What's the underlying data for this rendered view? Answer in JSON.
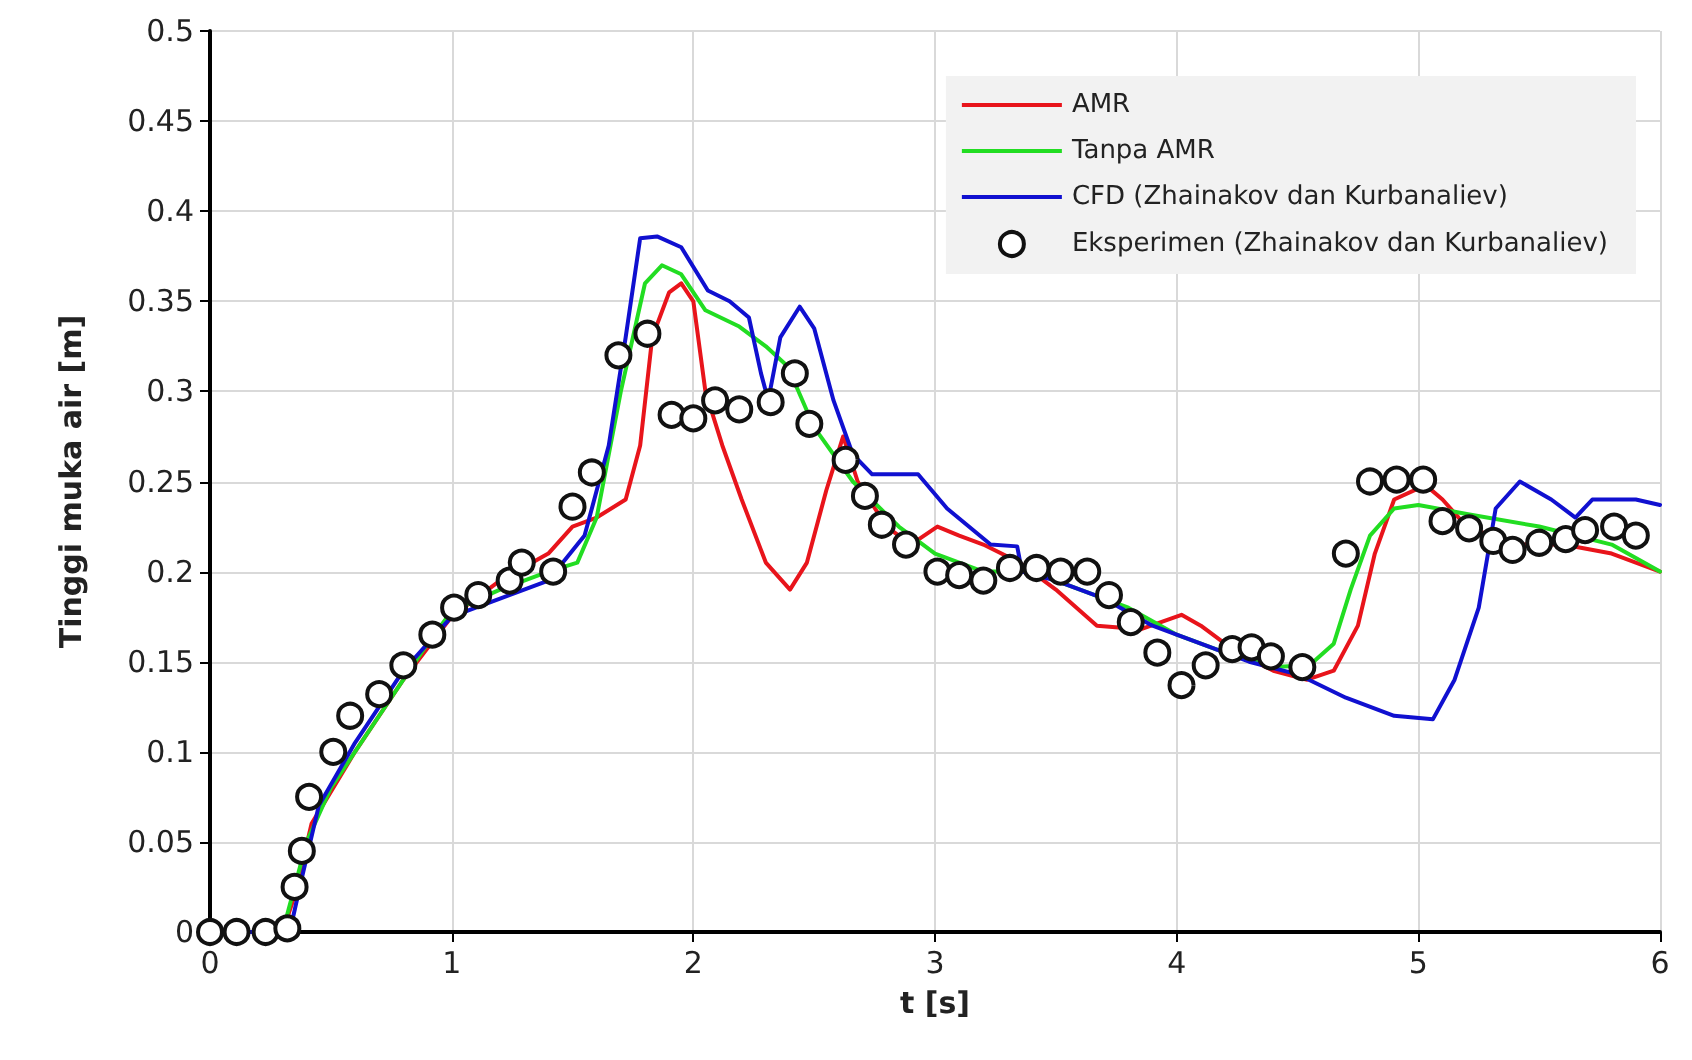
{
  "chart_data": {
    "type": "line",
    "xlabel": "t [s]",
    "ylabel": "Tinggi muka air [m]",
    "xlim": [
      0,
      6
    ],
    "xticks": [
      0,
      1,
      2,
      3,
      4,
      5,
      6
    ],
    "ylim": [
      0,
      0.5
    ],
    "yticks": [
      0,
      0.05,
      0.1,
      0.15,
      0.2,
      0.25,
      0.3,
      0.35,
      0.4,
      0.45,
      0.5
    ],
    "grid": true,
    "legend": "top right",
    "line_style": "solid",
    "series": [
      {
        "name": "AMR",
        "color": "#e8141b",
        "marker": "none",
        "x": [
          0,
          0.3,
          0.35,
          0.42,
          0.6,
          0.8,
          1.0,
          1.2,
          1.4,
          1.5,
          1.6,
          1.72,
          1.78,
          1.83,
          1.9,
          1.95,
          2.0,
          2.05,
          2.12,
          2.2,
          2.3,
          2.4,
          2.47,
          2.55,
          2.62,
          2.68,
          2.8,
          2.9,
          3.01,
          3.1,
          3.2,
          3.35,
          3.5,
          3.67,
          3.85,
          4.02,
          4.1,
          4.25,
          4.4,
          4.54,
          4.65,
          4.75,
          4.82,
          4.9,
          5.03,
          5.1,
          5.2,
          5.4,
          5.6,
          5.8,
          6.0
        ],
        "values": [
          0,
          0,
          0.02,
          0.06,
          0.1,
          0.14,
          0.175,
          0.195,
          0.21,
          0.225,
          0.23,
          0.24,
          0.27,
          0.33,
          0.355,
          0.36,
          0.35,
          0.3,
          0.27,
          0.24,
          0.205,
          0.19,
          0.205,
          0.245,
          0.275,
          0.25,
          0.225,
          0.215,
          0.225,
          0.22,
          0.215,
          0.205,
          0.19,
          0.17,
          0.168,
          0.176,
          0.17,
          0.155,
          0.145,
          0.14,
          0.145,
          0.17,
          0.21,
          0.24,
          0.248,
          0.24,
          0.225,
          0.215,
          0.215,
          0.21,
          0.2
        ]
      },
      {
        "name": "Tanpa AMR",
        "color": "#22dd22",
        "marker": "none",
        "x": [
          0,
          0.3,
          0.4,
          0.5,
          0.7,
          0.9,
          1.0,
          1.2,
          1.4,
          1.52,
          1.6,
          1.7,
          1.8,
          1.87,
          1.95,
          2.05,
          2.19,
          2.3,
          2.39,
          2.5,
          2.66,
          2.85,
          3.0,
          3.2,
          3.4,
          3.6,
          3.8,
          4.0,
          4.2,
          4.4,
          4.55,
          4.65,
          4.72,
          4.8,
          4.9,
          5.0,
          5.2,
          5.5,
          5.8,
          6.0
        ],
        "values": [
          0,
          0,
          0.05,
          0.08,
          0.12,
          0.16,
          0.178,
          0.19,
          0.2,
          0.205,
          0.23,
          0.3,
          0.36,
          0.37,
          0.365,
          0.345,
          0.336,
          0.325,
          0.314,
          0.28,
          0.25,
          0.225,
          0.21,
          0.2,
          0.2,
          0.19,
          0.18,
          0.165,
          0.155,
          0.147,
          0.148,
          0.16,
          0.19,
          0.22,
          0.235,
          0.237,
          0.232,
          0.225,
          0.215,
          0.2
        ]
      },
      {
        "name": "CFD (Zhainakov dan Kurbanaliev)",
        "color": "#1010d0",
        "marker": "none",
        "x": [
          0,
          0.33,
          0.38,
          0.45,
          0.6,
          0.8,
          1.0,
          1.2,
          1.4,
          1.55,
          1.65,
          1.72,
          1.78,
          1.85,
          1.95,
          2.06,
          2.15,
          2.23,
          2.28,
          2.31,
          2.36,
          2.44,
          2.5,
          2.58,
          2.66,
          2.74,
          2.93,
          3.05,
          3.23,
          3.34,
          3.36,
          3.5,
          3.7,
          3.9,
          4.1,
          4.3,
          4.5,
          4.7,
          4.9,
          5.06,
          5.15,
          5.25,
          5.32,
          5.42,
          5.55,
          5.65,
          5.72,
          5.9,
          6.0
        ],
        "values": [
          0,
          0,
          0.03,
          0.07,
          0.105,
          0.145,
          0.175,
          0.185,
          0.195,
          0.22,
          0.27,
          0.33,
          0.385,
          0.386,
          0.38,
          0.356,
          0.35,
          0.341,
          0.31,
          0.295,
          0.33,
          0.347,
          0.335,
          0.295,
          0.265,
          0.254,
          0.254,
          0.235,
          0.215,
          0.214,
          0.2,
          0.195,
          0.185,
          0.17,
          0.16,
          0.15,
          0.143,
          0.13,
          0.12,
          0.118,
          0.14,
          0.18,
          0.235,
          0.25,
          0.24,
          0.23,
          0.24,
          0.24,
          0.237
        ]
      },
      {
        "name": "Eksperimen (Zhainakov dan Kurbanaliev)",
        "type": "scatter",
        "color": "#111111",
        "marker": "circle",
        "x": [
          0,
          0.11,
          0.23,
          0.32,
          0.35,
          0.38,
          0.41,
          0.51,
          0.58,
          0.7,
          0.8,
          0.92,
          1.01,
          1.11,
          1.24,
          1.29,
          1.42,
          1.5,
          1.58,
          1.69,
          1.81,
          1.91,
          2.0,
          2.09,
          2.19,
          2.32,
          2.42,
          2.48,
          2.63,
          2.71,
          2.78,
          2.88,
          3.01,
          3.1,
          3.2,
          3.31,
          3.42,
          3.52,
          3.63,
          3.72,
          3.81,
          3.92,
          4.02,
          4.12,
          4.23,
          4.31,
          4.39,
          4.52,
          4.7,
          4.8,
          4.91,
          5.02,
          5.1,
          5.21,
          5.31,
          5.39,
          5.5,
          5.61,
          5.69,
          5.81,
          5.9
        ],
        "values": [
          0,
          0,
          0,
          0.002,
          0.025,
          0.045,
          0.075,
          0.1,
          0.12,
          0.132,
          0.148,
          0.165,
          0.18,
          0.187,
          0.195,
          0.205,
          0.2,
          0.236,
          0.255,
          0.32,
          0.332,
          0.287,
          0.285,
          0.295,
          0.29,
          0.294,
          0.31,
          0.282,
          0.262,
          0.242,
          0.226,
          0.215,
          0.2,
          0.198,
          0.195,
          0.202,
          0.202,
          0.2,
          0.2,
          0.187,
          0.172,
          0.155,
          0.137,
          0.148,
          0.157,
          0.158,
          0.153,
          0.147,
          0.21,
          0.25,
          0.251,
          0.251,
          0.228,
          0.224,
          0.217,
          0.212,
          0.216,
          0.218,
          0.223,
          0.225,
          0.22
        ]
      }
    ]
  }
}
